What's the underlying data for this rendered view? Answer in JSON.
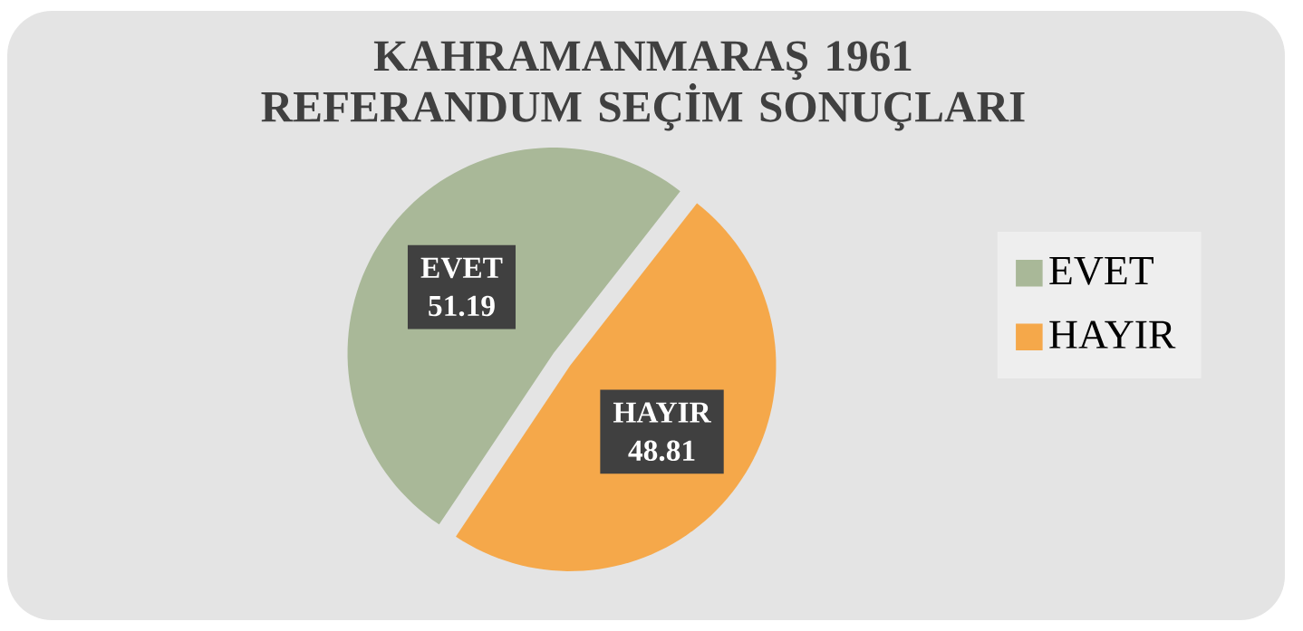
{
  "chart_data": {
    "type": "pie",
    "title": "KAHRAMANMARAŞ 1961 REFERANDUM SEÇİM SONUÇLARI",
    "categories": [
      "EVET",
      "HAYIR"
    ],
    "values": [
      51.19,
      48.81
    ],
    "colors": [
      "#a9b898",
      "#f5a84a"
    ],
    "legend": "right",
    "data_labels": true
  }
}
